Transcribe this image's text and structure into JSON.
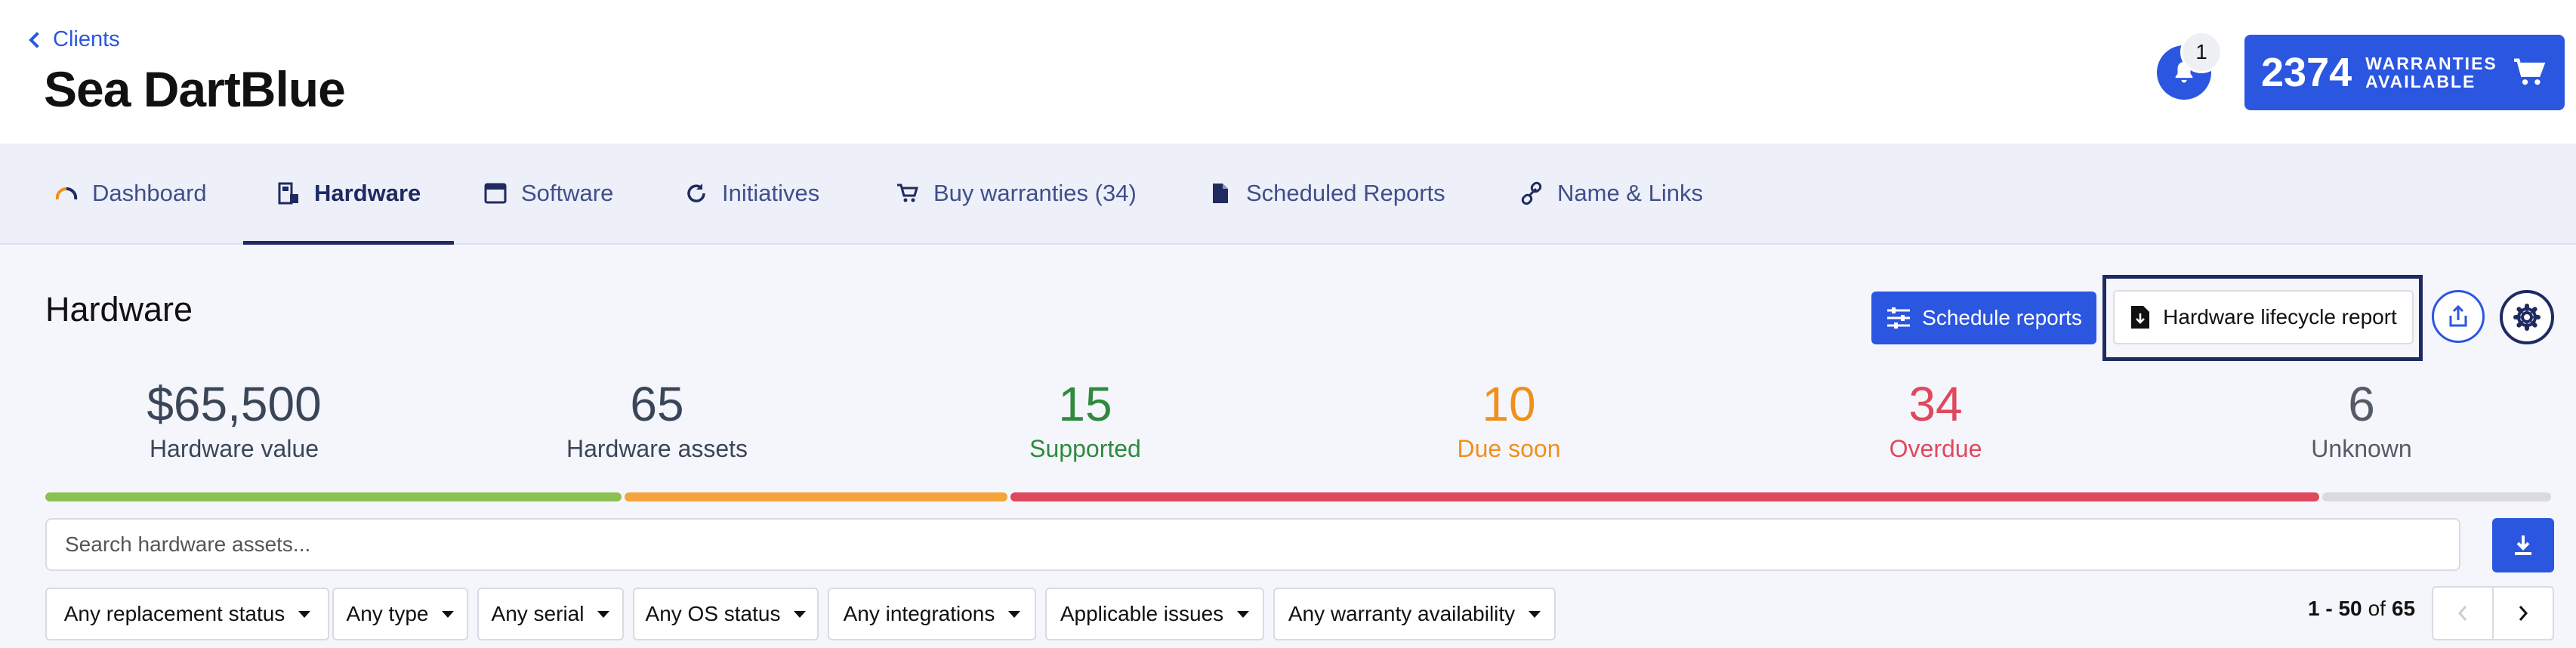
{
  "header": {
    "back_label": "Clients",
    "client_name": "Sea DartBlue",
    "notification_count": "1",
    "warranties_count": "2374",
    "warranties_label_line1": "WARRANTIES",
    "warranties_label_line2": "AVAILABLE"
  },
  "tabs": [
    {
      "label": "Dashboard",
      "icon": "gauge-icon"
    },
    {
      "label": "Hardware",
      "icon": "hardware-icon",
      "active": true
    },
    {
      "label": "Software",
      "icon": "window-icon"
    },
    {
      "label": "Initiatives",
      "icon": "refresh-icon"
    },
    {
      "label": "Buy warranties (34)",
      "icon": "cart-icon"
    },
    {
      "label": "Scheduled Reports",
      "icon": "file-icon"
    },
    {
      "label": "Name & Links",
      "icon": "link-icon"
    }
  ],
  "main": {
    "title": "Hardware",
    "schedule_reports_label": "Schedule reports",
    "lifecycle_report_label": "Hardware lifecycle report"
  },
  "stats": [
    {
      "value": "$65,500",
      "label": "Hardware value",
      "color": "#3a4658"
    },
    {
      "value": "65",
      "label": "Hardware assets",
      "color": "#3a4658"
    },
    {
      "value": "15",
      "label": "Supported",
      "color": "#2e8a3e"
    },
    {
      "value": "10",
      "label": "Due soon",
      "color": "#f0901c"
    },
    {
      "value": "34",
      "label": "Overdue",
      "color": "#e0485e"
    },
    {
      "value": "6",
      "label": "Unknown",
      "color": "#555b66"
    }
  ],
  "progress": {
    "segments": [
      {
        "status": "Supported",
        "count": 15,
        "color": "#8cc152"
      },
      {
        "status": "Due soon",
        "count": 10,
        "color": "#f4a43a"
      },
      {
        "status": "Overdue",
        "count": 34,
        "color": "#e0485e"
      },
      {
        "status": "Unknown",
        "count": 6,
        "color": "#d9d9de"
      }
    ]
  },
  "search": {
    "placeholder": "Search hardware assets..."
  },
  "filters": [
    "Any replacement status",
    "Any type",
    "Any serial",
    "Any OS status",
    "Any integrations",
    "Applicable issues",
    "Any warranty availability"
  ],
  "pagination": {
    "range": "1 - 50",
    "of": "of",
    "total": "65"
  },
  "colors": {
    "primary": "#2b56e0",
    "navy": "#1f2a60"
  }
}
